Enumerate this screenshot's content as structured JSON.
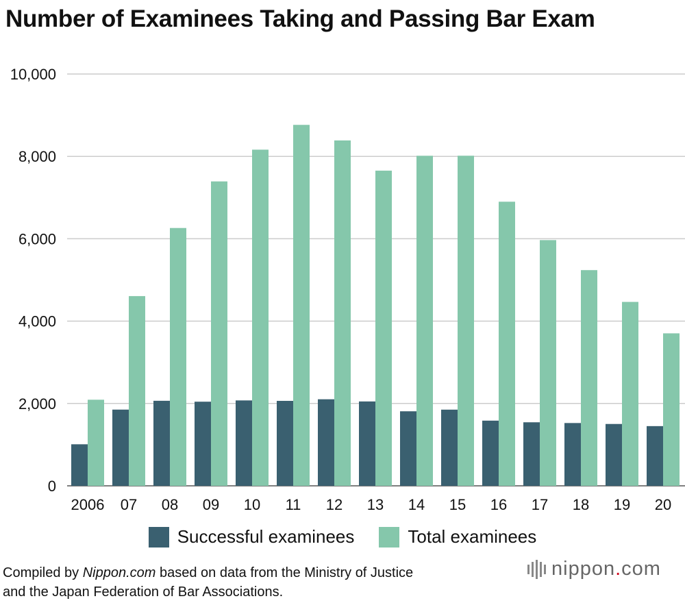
{
  "title": "Number of Examinees Taking and Passing Bar Exam",
  "legend": {
    "successful_label": "Successful examinees",
    "total_label": "Total examinees"
  },
  "footnote": {
    "line1_prefix": "Compiled by ",
    "line1_source": "Nippon.com",
    "line1_suffix": " based on data from the Ministry of Justice",
    "line2": "and the Japan Federation of Bar Associations."
  },
  "logo": {
    "main": "nippon",
    "dot": ".",
    "tld": "com"
  },
  "colors": {
    "successful": "#3a6070",
    "total": "#85c7ab",
    "grid": "#cccccc"
  },
  "chart_data": {
    "type": "bar",
    "title": "Number of Examinees Taking and Passing Bar Exam",
    "xlabel": "",
    "ylabel": "",
    "ylim": [
      0,
      10000
    ],
    "yticks": [
      0,
      2000,
      4000,
      6000,
      8000,
      10000
    ],
    "ytick_labels": [
      "0",
      "2,000",
      "4,000",
      "6,000",
      "8,000",
      "10,000"
    ],
    "grid": true,
    "legend_position": "bottom",
    "categories": [
      "2006",
      "07",
      "08",
      "09",
      "10",
      "11",
      "12",
      "13",
      "14",
      "15",
      "16",
      "17",
      "18",
      "19",
      "20"
    ],
    "series": [
      {
        "name": "Successful examinees",
        "values": [
          1009,
          1851,
          2065,
          2043,
          2074,
          2063,
          2102,
          2049,
          1810,
          1850,
          1583,
          1543,
          1525,
          1502,
          1450
        ]
      },
      {
        "name": "Total examinees",
        "values": [
          2091,
          4607,
          6261,
          7392,
          8163,
          8765,
          8387,
          7653,
          8015,
          8016,
          6899,
          5967,
          5238,
          4466,
          3703
        ]
      }
    ]
  }
}
